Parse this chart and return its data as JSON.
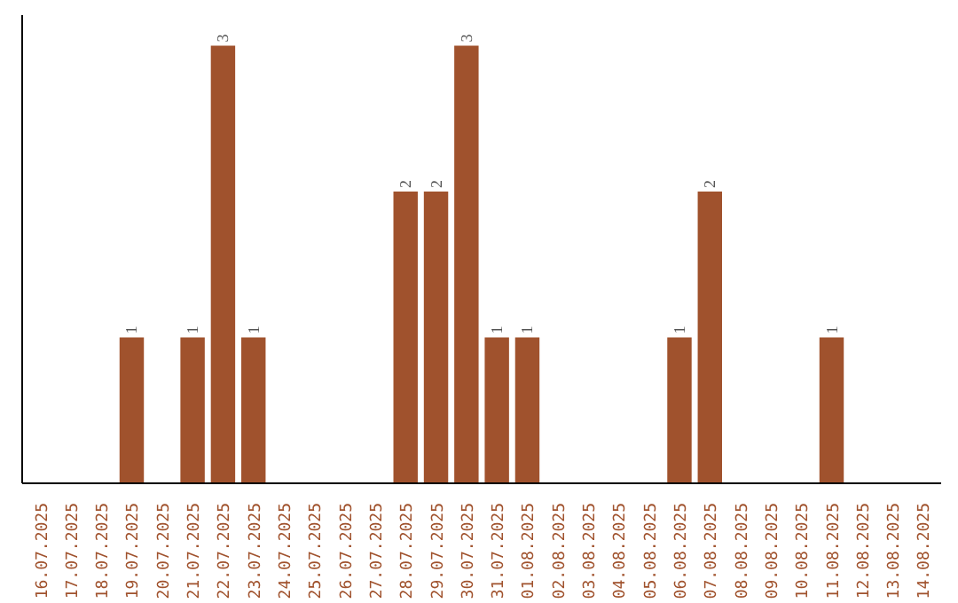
{
  "chart_data": {
    "type": "bar",
    "categories": [
      "16.07.2025",
      "17.07.2025",
      "18.07.2025",
      "19.07.2025",
      "20.07.2025",
      "21.07.2025",
      "22.07.2025",
      "23.07.2025",
      "24.07.2025",
      "25.07.2025",
      "26.07.2025",
      "27.07.2025",
      "28.07.2025",
      "29.07.2025",
      "30.07.2025",
      "31.07.2025",
      "01.08.2025",
      "02.08.2025",
      "03.08.2025",
      "04.08.2025",
      "05.08.2025",
      "06.08.2025",
      "07.08.2025",
      "08.08.2025",
      "09.08.2025",
      "10.08.2025",
      "11.08.2025",
      "12.08.2025",
      "13.08.2025",
      "14.08.2025"
    ],
    "values": [
      0,
      0,
      0,
      1,
      0,
      1,
      3,
      1,
      0,
      0,
      0,
      0,
      2,
      2,
      3,
      1,
      1,
      0,
      0,
      0,
      0,
      1,
      2,
      0,
      0,
      0,
      1,
      0,
      0,
      0
    ],
    "value_labels": [
      null,
      null,
      null,
      "1",
      null,
      "1",
      "3",
      "1",
      null,
      null,
      null,
      null,
      "2",
      "2",
      "3",
      "1",
      "1",
      null,
      null,
      null,
      null,
      "1",
      "2",
      null,
      null,
      null,
      "1",
      null,
      null,
      null
    ],
    "color": "#a0522d"
  }
}
